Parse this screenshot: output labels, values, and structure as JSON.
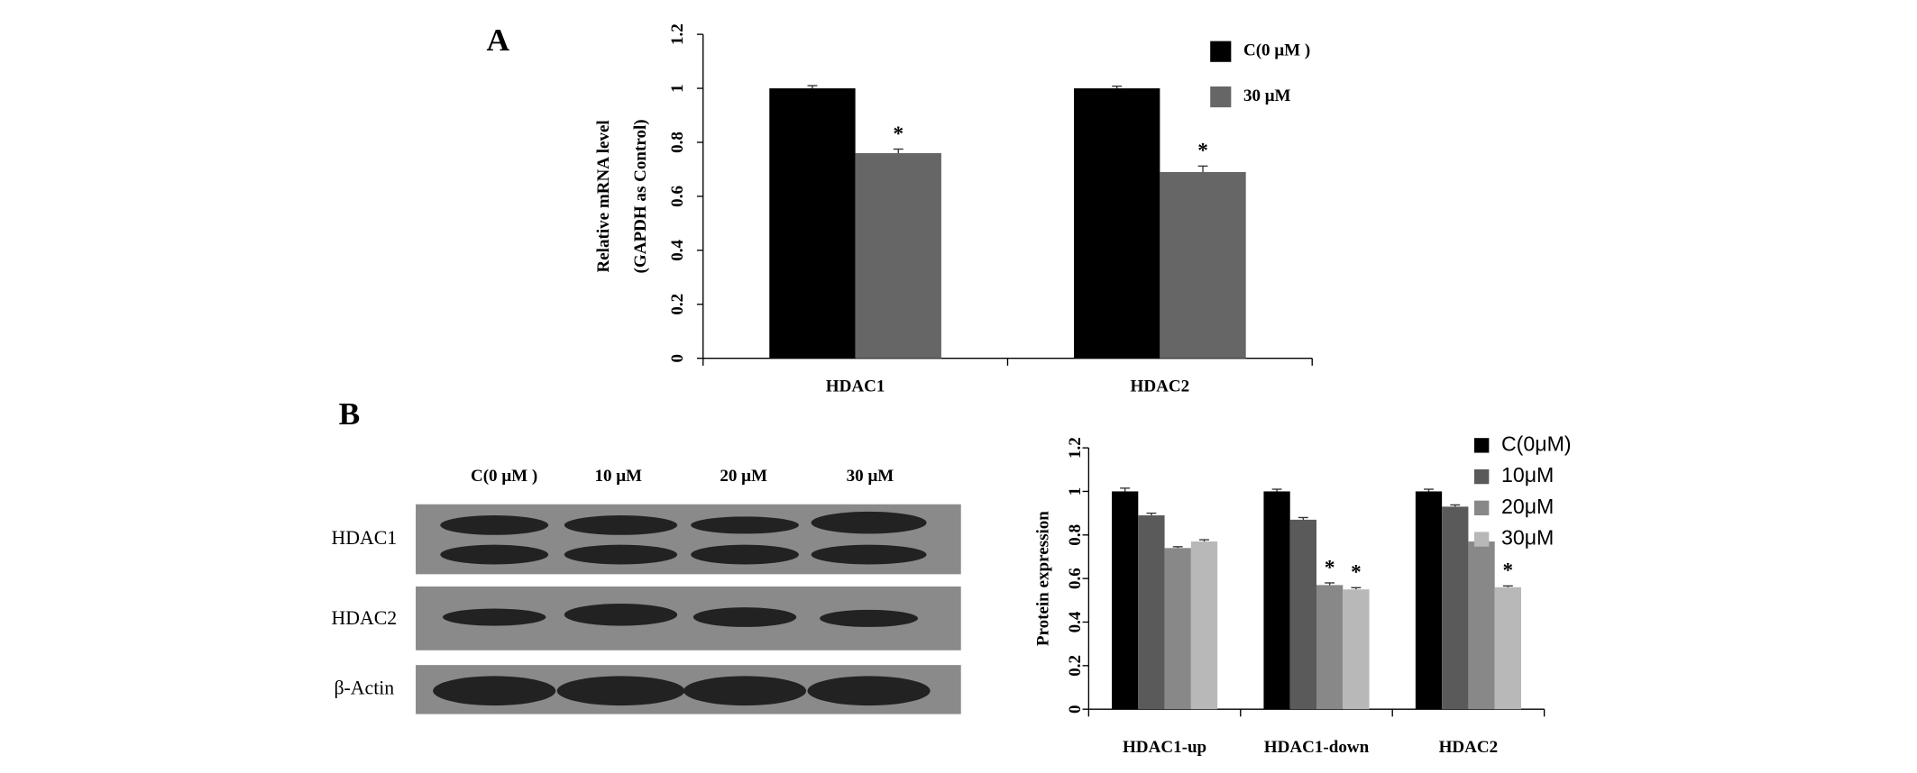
{
  "panels": [
    "A",
    "B"
  ],
  "blot": {
    "columns": [
      "C(0 μM )",
      "10 μM",
      "20 μM",
      "30 μM"
    ],
    "rows": [
      "HDAC1",
      "HDAC2",
      "β-Actin"
    ]
  },
  "chart_data": [
    {
      "type": "bar",
      "ylabel": [
        "Relative mRNA level",
        "(GAPDH as Control)"
      ],
      "categories": [
        "HDAC1",
        "HDAC2"
      ],
      "series": [
        {
          "name": "C(0 μM )",
          "color": "#000000",
          "values": [
            1,
            1
          ],
          "errors": [
            0.01,
            0.008
          ],
          "labels": [
            null,
            null
          ]
        },
        {
          "name": "30 μM",
          "color": "#666666",
          "values": [
            0.76,
            0.69
          ],
          "errors": [
            0.015,
            0.022
          ],
          "labels": [
            "*",
            "*"
          ]
        }
      ],
      "ylim": [
        0,
        1.2
      ],
      "yticks": [
        0,
        0.2,
        0.4,
        0.6,
        0.8,
        1,
        1.2
      ]
    },
    {
      "type": "bar",
      "ylabel": [
        "Protein expression"
      ],
      "categories": [
        "HDAC1-up",
        "HDAC1-down",
        "HDAC2"
      ],
      "series": [
        {
          "name": "C(0μM)",
          "color": "#000000",
          "values": [
            1,
            1,
            1
          ],
          "errors": [
            0.015,
            0.01,
            0.01
          ],
          "labels": [
            null,
            null,
            null
          ]
        },
        {
          "name": "10μM",
          "color": "#5a5a5a",
          "values": [
            0.89,
            0.87,
            0.93
          ],
          "errors": [
            0.01,
            0.01,
            0.008
          ],
          "labels": [
            null,
            null,
            null
          ]
        },
        {
          "name": "20μM",
          "color": "#888888",
          "values": [
            0.74,
            0.57,
            0.77
          ],
          "errors": [
            0.006,
            0.01,
            0.008
          ],
          "labels": [
            null,
            "*",
            null
          ]
        },
        {
          "name": "30μM",
          "color": "#b8b8b8",
          "values": [
            0.77,
            0.55,
            0.56
          ],
          "errors": [
            0.008,
            0.008,
            0.006
          ],
          "labels": [
            null,
            "*",
            "*"
          ]
        }
      ],
      "ylim": [
        0,
        1.2
      ],
      "yticks": [
        0,
        0.2,
        0.4,
        0.6,
        0.8,
        1,
        1.2
      ]
    }
  ]
}
